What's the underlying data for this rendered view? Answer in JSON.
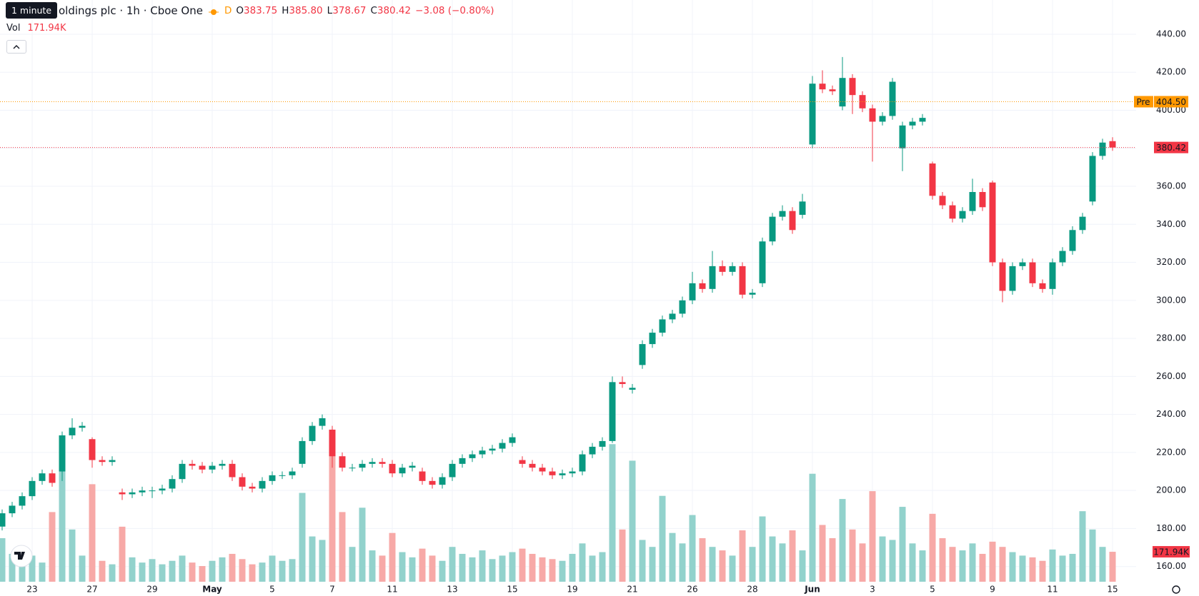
{
  "chart_data": {
    "type": "candlestick",
    "header": {
      "tooltip": "1 minute",
      "title": "oldings plc · 1h · Cboe One",
      "badge": "D",
      "o_label": "O",
      "o": "383.75",
      "h_label": "H",
      "h": "385.80",
      "l_label": "L",
      "l": "378.67",
      "c_label": "C",
      "c": "380.42",
      "change": "−3.08 (−0.80%)",
      "vol_label": "Vol",
      "vol": "171.94K"
    },
    "categories": [
      null,
      null,
      null,
      "23",
      null,
      null,
      null,
      null,
      null,
      "27",
      null,
      null,
      null,
      null,
      null,
      "29",
      null,
      null,
      null,
      null,
      null,
      "May",
      null,
      null,
      null,
      null,
      null,
      "5",
      null,
      null,
      null,
      null,
      null,
      "7",
      null,
      null,
      null,
      null,
      null,
      "11",
      null,
      null,
      null,
      null,
      null,
      "13",
      null,
      null,
      null,
      null,
      null,
      "15",
      null,
      null,
      null,
      null,
      null,
      "19",
      null,
      null,
      null,
      null,
      null,
      "21",
      null,
      null,
      null,
      null,
      null,
      "26",
      null,
      null,
      null,
      null,
      null,
      "28",
      null,
      null,
      null,
      null,
      null,
      "Jun",
      null,
      null,
      null,
      null,
      null,
      "3",
      null,
      null,
      null,
      null,
      null,
      "5",
      null,
      null,
      null,
      null,
      null,
      "9",
      null,
      null,
      null,
      null,
      null,
      "11",
      null,
      null,
      null,
      null,
      null,
      "15"
    ],
    "open": [
      181,
      188,
      192,
      197,
      205,
      209,
      210,
      229,
      233,
      227,
      216,
      215,
      199,
      198,
      199,
      200,
      200,
      201,
      206,
      214,
      213,
      211,
      213,
      214,
      207,
      202,
      201,
      205,
      208,
      208,
      214,
      226,
      234,
      232,
      218,
      212,
      212,
      214,
      215,
      214,
      209,
      212,
      210,
      205,
      203,
      207,
      214,
      217,
      219,
      221,
      222,
      225,
      216,
      214,
      212,
      210,
      208,
      209,
      210,
      219,
      223,
      226,
      257,
      253,
      266,
      277,
      283,
      290,
      293,
      300,
      309,
      306,
      318,
      315,
      318,
      303,
      309,
      331,
      344,
      347,
      345,
      382,
      414,
      411,
      402,
      417,
      408,
      401,
      394,
      397,
      380,
      392,
      394,
      372,
      355,
      350,
      343,
      347,
      357,
      362,
      320,
      305,
      318,
      320,
      309,
      306,
      320,
      326,
      337,
      352,
      376,
      383.75
    ],
    "high": [
      190,
      194,
      199,
      207,
      211,
      211,
      231,
      238,
      236,
      228,
      218,
      218,
      201,
      201,
      202,
      202,
      203,
      208,
      216,
      216,
      215,
      215,
      216,
      216,
      209,
      204,
      207,
      210,
      210,
      212,
      228,
      236,
      240,
      234,
      220,
      214,
      216,
      217,
      217,
      216,
      214,
      215,
      212,
      207,
      209,
      216,
      219,
      221,
      223,
      224,
      227,
      230,
      218,
      216,
      214,
      212,
      211,
      212,
      221,
      225,
      228,
      260,
      260,
      256,
      279,
      285,
      292,
      295,
      302,
      315,
      311,
      326,
      321,
      320,
      320,
      306,
      333,
      346,
      350,
      349,
      356,
      418,
      421,
      413,
      428,
      419,
      410,
      403,
      399,
      417,
      394,
      396,
      398,
      373,
      357,
      352,
      349,
      364,
      359,
      363,
      322,
      320,
      322,
      322,
      311,
      322,
      328,
      339,
      346,
      378,
      385,
      385.8
    ],
    "low": [
      179,
      186,
      190,
      195,
      203,
      202,
      205,
      227,
      231,
      212,
      213,
      213,
      195,
      196,
      197,
      196,
      198,
      199,
      204,
      211,
      209,
      209,
      211,
      205,
      200,
      199,
      199,
      203,
      206,
      206,
      212,
      224,
      232,
      212,
      210,
      210,
      210,
      212,
      212,
      207,
      207,
      210,
      203,
      201,
      201,
      205,
      212,
      215,
      217,
      219,
      220,
      223,
      212,
      210,
      208,
      206,
      206,
      207,
      208,
      217,
      221,
      225,
      254,
      251,
      264,
      275,
      281,
      288,
      291,
      298,
      304,
      304,
      313,
      313,
      301,
      301,
      307,
      329,
      342,
      335,
      343,
      380,
      409,
      408,
      400,
      398,
      399,
      373,
      392,
      395,
      368,
      390,
      392,
      353,
      348,
      341,
      341,
      345,
      347,
      318,
      299,
      303,
      316,
      307,
      304,
      303,
      318,
      324,
      335,
      350,
      374,
      378.67
    ],
    "close": [
      188,
      192,
      197,
      205,
      209,
      204,
      229,
      233,
      234,
      216,
      215,
      216,
      198,
      199,
      200,
      200,
      201,
      206,
      214,
      213,
      211,
      213,
      214,
      207,
      202,
      201,
      205,
      208,
      208,
      210,
      226,
      234,
      238,
      218,
      212,
      212,
      214,
      215,
      214,
      209,
      212,
      213,
      205,
      203,
      207,
      214,
      217,
      219,
      221,
      222,
      225,
      228,
      214,
      212,
      210,
      208,
      209,
      210,
      219,
      223,
      226,
      257,
      256,
      254,
      277,
      283,
      290,
      293,
      300,
      309,
      306,
      318,
      315,
      318,
      303,
      304,
      331,
      344,
      347,
      337,
      352,
      414,
      411,
      410,
      417,
      408,
      401,
      394,
      397,
      415,
      392,
      394,
      396,
      355,
      350,
      343,
      347,
      357,
      349,
      320,
      305,
      318,
      320,
      309,
      306,
      320,
      326,
      337,
      344,
      376,
      383,
      380.42
    ],
    "volume": [
      250000,
      160000,
      120000,
      150000,
      110000,
      400000,
      690000,
      300000,
      150000,
      560000,
      120000,
      100000,
      316000,
      140000,
      110000,
      130000,
      100000,
      120000,
      150000,
      110000,
      90000,
      120000,
      140000,
      160000,
      130000,
      100000,
      110000,
      150000,
      120000,
      130000,
      510000,
      260000,
      240000,
      845000,
      400000,
      200000,
      425000,
      180000,
      150000,
      280000,
      170000,
      140000,
      190000,
      150000,
      120000,
      200000,
      160000,
      140000,
      180000,
      130000,
      150000,
      170000,
      190000,
      160000,
      140000,
      130000,
      120000,
      160000,
      220000,
      150000,
      170000,
      790000,
      300000,
      695000,
      240000,
      200000,
      493000,
      280000,
      220000,
      383000,
      250000,
      200000,
      180000,
      150000,
      295000,
      200000,
      375000,
      260000,
      220000,
      295000,
      180000,
      620000,
      326000,
      250000,
      475000,
      300000,
      220000,
      520000,
      260000,
      240000,
      430000,
      220000,
      180000,
      390000,
      250000,
      200000,
      180000,
      220000,
      160000,
      230000,
      200000,
      170000,
      150000,
      140000,
      120000,
      185000,
      150000,
      160000,
      405000,
      300000,
      200000,
      171940
    ],
    "up_color": "#089981",
    "down_color": "#f23645",
    "up_volume_color": "#92d2cc",
    "down_volume_color": "#f7a9a7",
    "ylim": [
      152,
      458
    ],
    "yticks": [
      {
        "value": 160,
        "label": "160.00"
      },
      {
        "value": 180,
        "label": "180.00"
      },
      {
        "value": 200,
        "label": "200.00"
      },
      {
        "value": 220,
        "label": "220.00"
      },
      {
        "value": 240,
        "label": "240.00"
      },
      {
        "value": 260,
        "label": "260.00"
      },
      {
        "value": 280,
        "label": "280.00"
      },
      {
        "value": 300,
        "label": "300.00"
      },
      {
        "value": 320,
        "label": "320.00"
      },
      {
        "value": 340,
        "label": "340.00"
      },
      {
        "value": 360,
        "label": "360.00"
      },
      {
        "value": 380,
        "label": "380.00"
      },
      {
        "value": 400,
        "label": "400.00"
      },
      {
        "value": 420,
        "label": "420.00"
      },
      {
        "value": 440,
        "label": "440.00"
      }
    ],
    "volume_lim": [
      0,
      1000000
    ],
    "grid": true,
    "last_price": {
      "value": 380.42,
      "label": "380.42",
      "color": "#f23645"
    },
    "pre_market": {
      "value": 404.5,
      "label": "404.50",
      "tag": "Pre",
      "color": "#ff9800"
    },
    "volume_label": {
      "value": 171940,
      "label": "171.94K",
      "color": "#f23645"
    }
  }
}
